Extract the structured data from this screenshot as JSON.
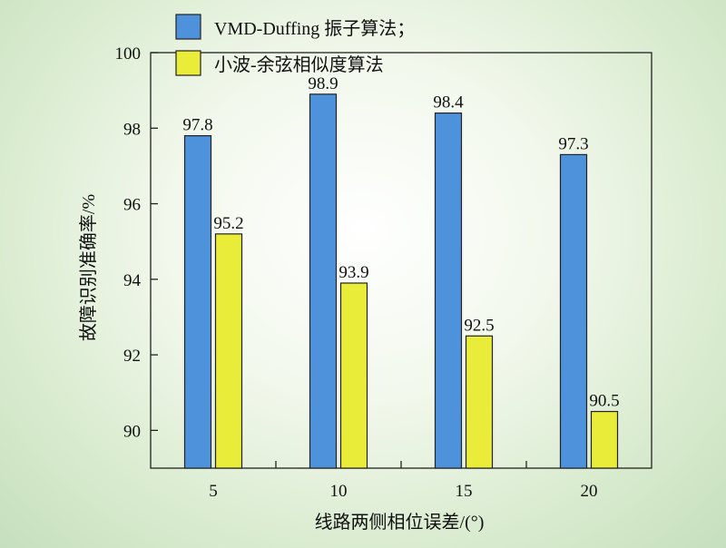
{
  "chart_data": {
    "type": "bar",
    "categories": [
      "5",
      "10",
      "15",
      "20"
    ],
    "series": [
      {
        "name": "VMD-Duffing 振子算法；",
        "values": [
          97.8,
          98.9,
          98.4,
          97.3
        ],
        "color": "#4f92dc"
      },
      {
        "name": "小波-余弦相似度算法",
        "values": [
          95.2,
          93.9,
          92.5,
          90.5
        ],
        "color": "#e9ec39"
      }
    ],
    "data_labels": [
      [
        "97.8",
        "98.9",
        "98.4",
        "97.3"
      ],
      [
        "95.2",
        "93.9",
        "92.5",
        "90.5"
      ]
    ],
    "xlabel": "线路两侧相位误差/(°)",
    "ylabel": "故障识别准确率/%",
    "ylim": [
      89,
      100
    ],
    "yticks": [
      90,
      92,
      94,
      96,
      98,
      100
    ],
    "ytick_labels": [
      "90",
      "92",
      "94",
      "96",
      "98",
      "100"
    ],
    "grid": false,
    "legend_position": "top-left"
  }
}
